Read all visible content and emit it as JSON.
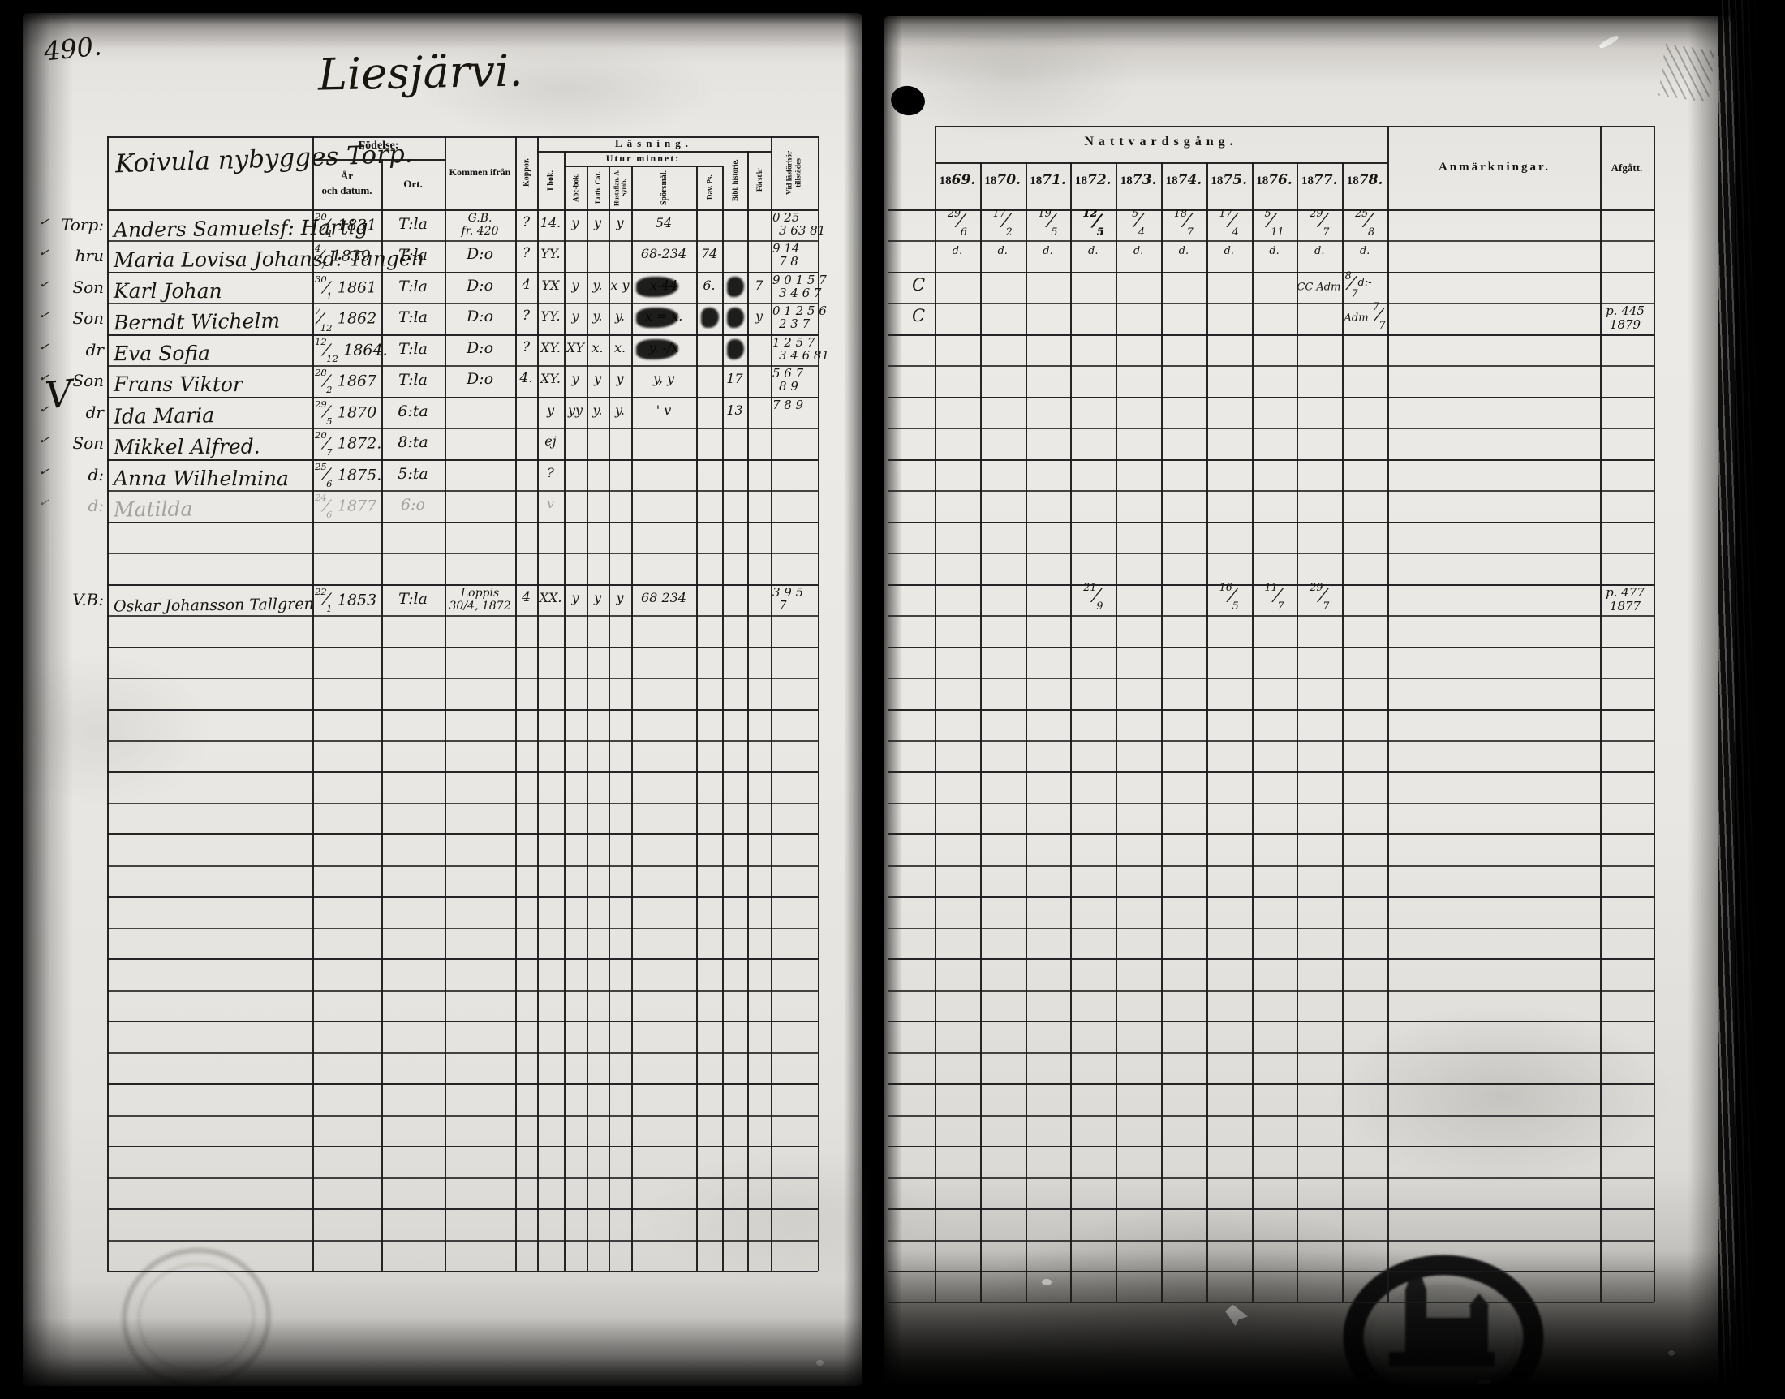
{
  "page": {
    "number": "490.",
    "title": "Liesjärvi."
  },
  "left_table": {
    "group_header": "Koivula nybygges Torp.",
    "big_v": "V",
    "headers": {
      "fodelse": "Födelse:",
      "ar": "År",
      "och_datum": "och datum.",
      "ort": "Ort.",
      "kommen_ifran": "Kommen ifrån",
      "koppor": "Koppor.",
      "lasning": "Läsning.",
      "utur_minnet": "Utur minnet:",
      "i_bok": "I bok.",
      "abc_bok": "Abc-bok.",
      "luth_cat": "Luth. Cat.",
      "hustaflan": "Hustaflan. A. Symb.",
      "sporsmal": "Spörsmål.",
      "dav_ps": "Dav. Ps.",
      "bibl_historie": "Bibl. historie.",
      "forstar": "Förstår",
      "vid_lasforhor": "Vid läsförhör tillstädes"
    },
    "rows": [
      {
        "row": 0,
        "label": "Torp:",
        "check": true,
        "name": "Anders Samuelsf: Hartig",
        "born": {
          "d": "20",
          "m": "4",
          "y": "1831"
        },
        "ort": "T:la",
        "from": [
          "G.B.",
          "fr. 420"
        ],
        "koppor": "?",
        "marks": {
          "i_bok": "14.",
          "abc_bok": "y",
          "luth_cat": "y",
          "hustaflan": "y",
          "sporsmal": "54"
        },
        "vid": [
          "0 25",
          "3 63 81"
        ]
      },
      {
        "row": 1,
        "label": "hru",
        "check": true,
        "name": "Maria Lovisa Johansd: Tangén",
        "born": {
          "d": "4",
          "m": "7",
          "y": "1839"
        },
        "ort": "T:la",
        "from": [
          "D:o"
        ],
        "koppor": "?",
        "marks": {
          "i_bok": "YY.",
          "sporsmal": "68-234",
          "dav_ps": "74"
        },
        "vid": [
          "9 14",
          "7 8"
        ]
      },
      {
        "row": 2,
        "label": "Son",
        "check": true,
        "name": "Karl Johan",
        "born": {
          "d": "30",
          "m": "1",
          "y": "1861"
        },
        "ort": "T:la",
        "from": [
          "D:o"
        ],
        "koppor": "4",
        "marks": {
          "i_bok": "YX",
          "abc_bok": "y",
          "luth_cat": "y.",
          "hustaflan": "x y",
          "sporsmal": "x-44",
          "dav_ps": "6.",
          "forstar": "7"
        },
        "vid": [
          "9 0 1 5 7",
          "3 4 6 7"
        ],
        "blots": [
          "sporsmal",
          "bibl_historie"
        ]
      },
      {
        "row": 3,
        "label": "Son",
        "check": true,
        "name": "Berndt Wichelm",
        "born": {
          "d": "7",
          "m": "12",
          "y": "1862"
        },
        "ort": "T:la",
        "from": [
          "D:o"
        ],
        "koppor": "?",
        "marks": {
          "i_bok": "YY.",
          "abc_bok": "y",
          "luth_cat": "y.",
          "hustaflan": "y.",
          "sporsmal": "x = x.",
          "forstar": "y"
        },
        "vid": [
          "0 1 2 5 6",
          "2 3 7"
        ],
        "blots": [
          "sporsmal",
          "dav_ps",
          "bibl_historie"
        ]
      },
      {
        "row": 4,
        "label": "dr",
        "check": true,
        "name": "Eva Sofia",
        "born": {
          "d": "12",
          "m": "12",
          "y": "1864."
        },
        "ort": "T:la",
        "from": [
          "D:o"
        ],
        "koppor": "?",
        "marks": {
          "i_bok": "XY.",
          "abc_bok": "XY",
          "luth_cat": "x.",
          "hustaflan": "x.",
          "sporsmal": "y. -/x"
        },
        "vid": [
          "1 2 5 7",
          "3 4 6 81"
        ],
        "blots": [
          "sporsmal",
          "bibl_historie"
        ]
      },
      {
        "row": 5,
        "label": "Son",
        "check": true,
        "name": "Frans Viktor",
        "born": {
          "d": "28",
          "m": "2",
          "y": "1867"
        },
        "ort": "T:la",
        "from": [
          "D:o"
        ],
        "koppor": "4.",
        "marks": {
          "i_bok": "XY.",
          "abc_bok": "y",
          "luth_cat": "y",
          "hustaflan": "y",
          "sporsmal": "y, y",
          "bibl_historie": "17"
        },
        "vid": [
          "5 6 7",
          "8 9"
        ]
      },
      {
        "row": 6,
        "label": "dr",
        "check": true,
        "name": "Ida Maria",
        "born": {
          "d": "29",
          "m": "5",
          "y": "1870"
        },
        "ort": "6:ta",
        "marks": {
          "i_bok": "y",
          "abc_bok": "yy",
          "luth_cat": "y.",
          "hustaflan": "y.",
          "sporsmal": "' v",
          "bibl_historie": "13"
        },
        "vid": [
          "7 8 9",
          ""
        ]
      },
      {
        "row": 7,
        "label": "Son",
        "check": true,
        "name": "Mikkel Alfred.",
        "born": {
          "d": "20",
          "m": "7",
          "y": "1872."
        },
        "ort": "8:ta",
        "marks": {
          "i_bok": "ej"
        }
      },
      {
        "row": 8,
        "label": "d:",
        "check": true,
        "name": "Anna Wilhelmina",
        "born": {
          "d": "25",
          "m": "6",
          "y": "1875."
        },
        "ort": "5:ta",
        "marks": {
          "i_bok": "?"
        }
      },
      {
        "row": 9,
        "label": "d:",
        "check": true,
        "faint": true,
        "name": "Matilda",
        "born": {
          "d": "24",
          "m": "6",
          "y": "1877"
        },
        "ort": "6:o",
        "marks": {
          "i_bok": "v"
        }
      },
      {
        "row": 12,
        "label": "V.B:",
        "check": false,
        "size": 19,
        "name": "Oskar Johansson Tallgren",
        "born": {
          "d": "22",
          "m": "1",
          "y": "1853"
        },
        "ort": "T:la",
        "from": [
          "Loppis",
          "30/4, 1872"
        ],
        "koppor": "4",
        "marks": {
          "i_bok": "XX.",
          "abc_bok": "y",
          "luth_cat": "y",
          "hustaflan": "y",
          "sporsmal": "68 234"
        },
        "vid": [
          "3 9 5",
          "7"
        ]
      }
    ]
  },
  "right_table": {
    "header": "Nattvardsgång.",
    "years": [
      {
        "p": "18",
        "h": "69."
      },
      {
        "p": "18",
        "h": "70."
      },
      {
        "p": "18",
        "h": "71."
      },
      {
        "p": "18",
        "h": "72."
      },
      {
        "p": "18",
        "h": "73."
      },
      {
        "p": "18",
        "h": "74."
      },
      {
        "p": "18",
        "h": "75."
      },
      {
        "p": "18",
        "h": "76."
      },
      {
        "p": "18",
        "h": "77."
      },
      {
        "p": "18",
        "h": "78."
      }
    ],
    "anmarkningar": "Anmärkningar.",
    "afgatt": "Afgått.",
    "rows": [
      {
        "row": 0,
        "cells": {
          "0": {
            "f": "29/6"
          },
          "1": {
            "f": "17/2"
          },
          "2": {
            "f": "19/5"
          },
          "3": {
            "f": "12/5",
            "bold": true
          },
          "4": {
            "f": "5/4"
          },
          "5": {
            "f": "18/7"
          },
          "6": {
            "f": "17/4"
          },
          "7": {
            "f": "5/11"
          },
          "8": {
            "f": "29/7"
          },
          "9": {
            "f": "25/8"
          }
        }
      },
      {
        "row": 1,
        "cells": {
          "0": {
            "t": "d."
          },
          "1": {
            "t": "d."
          },
          "2": {
            "t": "d."
          },
          "3": {
            "t": "d."
          },
          "4": {
            "t": "d."
          },
          "5": {
            "t": "d."
          },
          "6": {
            "t": "d."
          },
          "7": {
            "t": "d."
          },
          "8": {
            "t": "d."
          },
          "9": {
            "t": "d."
          }
        }
      },
      {
        "row": 2,
        "prefix": "C",
        "cells": {
          "8": {
            "t": "CC Adm",
            "f": "8/7"
          },
          "9": {
            "t": "d:-"
          }
        }
      },
      {
        "row": 3,
        "prefix": "C",
        "cells": {
          "9": {
            "t": "Adm",
            "f": "7/7"
          }
        },
        "afgatt": [
          "p. 445",
          "1879"
        ]
      },
      {
        "row": 12,
        "cells": {
          "3": {
            "f": "21/9"
          },
          "6": {
            "f": "16/5"
          },
          "7": {
            "f": "11/7"
          },
          "8": {
            "f": "29/7"
          }
        },
        "afgatt": [
          "p. 477",
          "1877"
        ]
      }
    ]
  }
}
